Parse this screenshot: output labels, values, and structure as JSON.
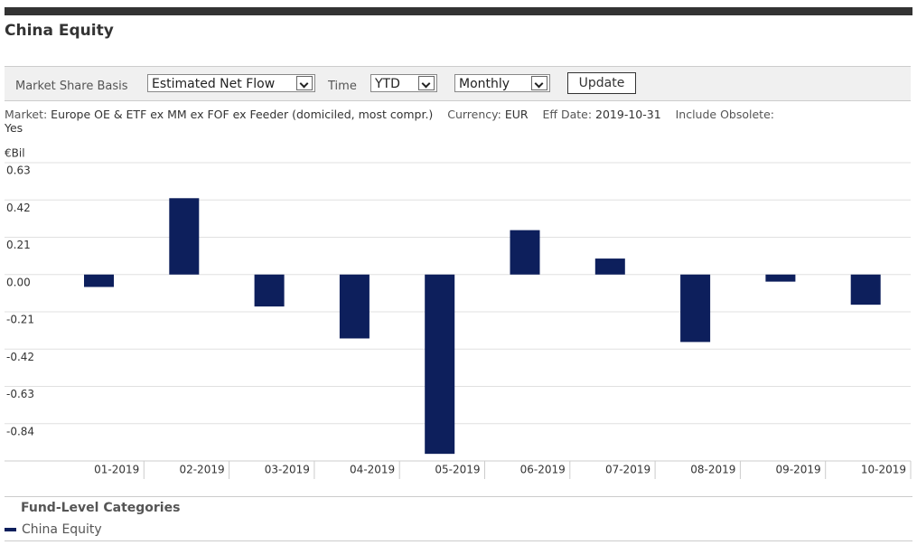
{
  "header": {
    "title": "China Equity"
  },
  "controls": {
    "basis_label": "Market Share Basis",
    "basis": "Estimated Net Flow",
    "time_label": "Time",
    "time": "YTD",
    "frequency": "Monthly",
    "button": "Update"
  },
  "info": {
    "market_label": "Market:",
    "market": "Europe OE & ETF ex MM ex FOF ex Feeder (domiciled, most compr.)",
    "currency_label": "Currency:",
    "currency": "EUR",
    "date_label": "Eff Date:",
    "date": "2019-10-31",
    "obsolete_label": "Include Obsolete:",
    "obsolete": "Yes"
  },
  "chart_data": {
    "type": "bar",
    "y_label": "€Bil",
    "categories": [
      "01-2019",
      "02-2019",
      "03-2019",
      "04-2019",
      "05-2019",
      "06-2019",
      "07-2019",
      "08-2019",
      "09-2019",
      "10-2019"
    ],
    "series": [
      {
        "name": "China Equity",
        "color": "#0d1f5c",
        "values": [
          -0.07,
          0.43,
          -0.18,
          -0.36,
          -1.01,
          0.25,
          0.09,
          -0.38,
          -0.04,
          -0.17
        ]
      }
    ],
    "ylim": [
      -1.05,
      0.63
    ],
    "yticks": [
      0.63,
      0.42,
      0.21,
      {
        "value": 0,
        "label": "0.00"
      },
      -0.21,
      -0.42,
      -0.63,
      -0.84
    ],
    "grid": true
  },
  "legend": {
    "title": "Fund-Level Categories"
  }
}
